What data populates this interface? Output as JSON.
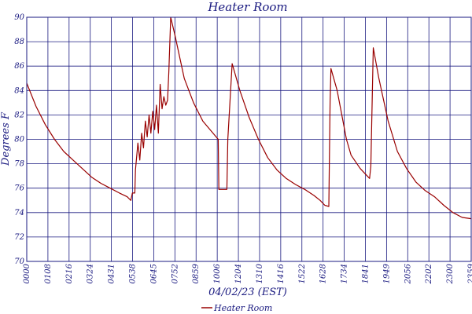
{
  "chart_data": {
    "type": "line",
    "title": "Heater Room",
    "xlabel": "04/02/23 (EST)",
    "ylabel": "Degrees F",
    "xlim": [
      "00:00",
      "23:59"
    ],
    "ylim": [
      70,
      90
    ],
    "yticks": [
      70,
      72,
      74,
      76,
      78,
      80,
      82,
      84,
      86,
      88,
      90
    ],
    "xtick_labels": [
      "0000",
      "0108",
      "0216",
      "0324",
      "0431",
      "0538",
      "0645",
      "0752",
      "0859",
      "1006",
      "1204",
      "1310",
      "1416",
      "1522",
      "1628",
      "1734",
      "1841",
      "1949",
      "2056",
      "2202",
      "2300",
      "2359"
    ],
    "grid": true,
    "legend": "bottom-center",
    "colors": {
      "series": "#990000",
      "grid": "#1a1a80",
      "text": "#1a1a80"
    },
    "series": [
      {
        "name": "Heater Room",
        "points": [
          [
            "00:00",
            84.6
          ],
          [
            "00:30",
            82.7
          ],
          [
            "01:00",
            81.2
          ],
          [
            "01:30",
            80.0
          ],
          [
            "02:00",
            79.0
          ],
          [
            "02:30",
            78.3
          ],
          [
            "03:00",
            77.6
          ],
          [
            "03:30",
            76.9
          ],
          [
            "04:00",
            76.4
          ],
          [
            "04:30",
            76.0
          ],
          [
            "05:00",
            75.6
          ],
          [
            "05:25",
            75.3
          ],
          [
            "05:37",
            75.0
          ],
          [
            "05:42",
            75.6
          ],
          [
            "05:50",
            75.6
          ],
          [
            "05:52",
            77.5
          ],
          [
            "06:00",
            79.7
          ],
          [
            "06:06",
            78.3
          ],
          [
            "06:12",
            80.5
          ],
          [
            "06:18",
            79.3
          ],
          [
            "06:24",
            81.5
          ],
          [
            "06:30",
            80.2
          ],
          [
            "06:36",
            82.0
          ],
          [
            "06:42",
            80.5
          ],
          [
            "06:48",
            82.3
          ],
          [
            "06:54",
            80.8
          ],
          [
            "07:00",
            82.8
          ],
          [
            "07:06",
            80.5
          ],
          [
            "07:12",
            84.5
          ],
          [
            "07:18",
            82.5
          ],
          [
            "07:24",
            83.5
          ],
          [
            "07:30",
            82.8
          ],
          [
            "07:36",
            83.2
          ],
          [
            "07:40",
            85.5
          ],
          [
            "07:46",
            90.0
          ],
          [
            "08:00",
            88.5
          ],
          [
            "08:30",
            85.0
          ],
          [
            "09:00",
            83.0
          ],
          [
            "09:30",
            81.5
          ],
          [
            "10:00",
            80.6
          ],
          [
            "10:20",
            80.0
          ],
          [
            "10:22",
            75.9
          ],
          [
            "10:48",
            75.9
          ],
          [
            "10:51",
            80.0
          ],
          [
            "11:05",
            86.2
          ],
          [
            "11:30",
            84.0
          ],
          [
            "12:00",
            81.8
          ],
          [
            "12:30",
            80.0
          ],
          [
            "13:00",
            78.5
          ],
          [
            "13:30",
            77.5
          ],
          [
            "14:00",
            76.8
          ],
          [
            "14:30",
            76.3
          ],
          [
            "15:00",
            75.9
          ],
          [
            "15:30",
            75.4
          ],
          [
            "15:50",
            75.0
          ],
          [
            "16:05",
            74.6
          ],
          [
            "16:18",
            74.5
          ],
          [
            "16:20",
            78.8
          ],
          [
            "16:22",
            83.0
          ],
          [
            "16:25",
            85.8
          ],
          [
            "16:45",
            84.0
          ],
          [
            "17:00",
            82.0
          ],
          [
            "17:15",
            80.0
          ],
          [
            "17:30",
            78.7
          ],
          [
            "18:00",
            77.6
          ],
          [
            "18:30",
            76.8
          ],
          [
            "18:34",
            77.8
          ],
          [
            "18:42",
            87.5
          ],
          [
            "19:00",
            85.0
          ],
          [
            "19:30",
            81.5
          ],
          [
            "20:00",
            79.0
          ],
          [
            "20:30",
            77.6
          ],
          [
            "21:00",
            76.5
          ],
          [
            "21:30",
            75.8
          ],
          [
            "22:00",
            75.3
          ],
          [
            "22:30",
            74.6
          ],
          [
            "23:00",
            74.0
          ],
          [
            "23:30",
            73.6
          ],
          [
            "23:59",
            73.5
          ]
        ]
      }
    ]
  }
}
